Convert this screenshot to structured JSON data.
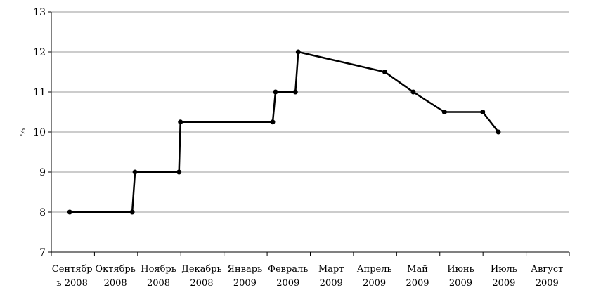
{
  "chart_data": {
    "type": "line",
    "title": "",
    "xlabel": "",
    "ylabel": "%",
    "ylim": [
      7,
      13
    ],
    "yticks": [
      7,
      8,
      9,
      10,
      11,
      12,
      13
    ],
    "grid": true,
    "categories": [
      {
        "line1": "Сентябр",
        "line2": "ь 2008"
      },
      {
        "line1": "Октябрь",
        "line2": "2008"
      },
      {
        "line1": "Ноябрь",
        "line2": "2008"
      },
      {
        "line1": "Декабрь",
        "line2": "2008"
      },
      {
        "line1": "Январь",
        "line2": "2009"
      },
      {
        "line1": "Февраль",
        "line2": "2009"
      },
      {
        "line1": "Март",
        "line2": "2009"
      },
      {
        "line1": "Апрель",
        "line2": "2009"
      },
      {
        "line1": "Май",
        "line2": "2009"
      },
      {
        "line1": "Июнь",
        "line2": "2009"
      },
      {
        "line1": "Июль",
        "line2": "2009"
      },
      {
        "line1": "Август",
        "line2": "2009"
      }
    ],
    "series": [
      {
        "color": "#000000",
        "points": [
          {
            "x": "2008-09-14",
            "y": 8.0
          },
          {
            "x": "2008-10-28",
            "y": 8.0
          },
          {
            "x": "2008-10-30",
            "y": 9.0
          },
          {
            "x": "2008-11-30",
            "y": 9.0
          },
          {
            "x": "2008-12-01",
            "y": 10.25
          },
          {
            "x": "2009-02-04",
            "y": 10.25
          },
          {
            "x": "2009-02-06",
            "y": 11.0
          },
          {
            "x": "2009-02-20",
            "y": 11.0
          },
          {
            "x": "2009-02-22",
            "y": 12.0
          },
          {
            "x": "2009-04-24",
            "y": 11.5
          },
          {
            "x": "2009-05-14",
            "y": 11.0
          },
          {
            "x": "2009-06-05",
            "y": 10.5
          },
          {
            "x": "2009-07-02",
            "y": 10.5
          },
          {
            "x": "2009-07-13",
            "y": 10.0
          }
        ]
      }
    ]
  }
}
